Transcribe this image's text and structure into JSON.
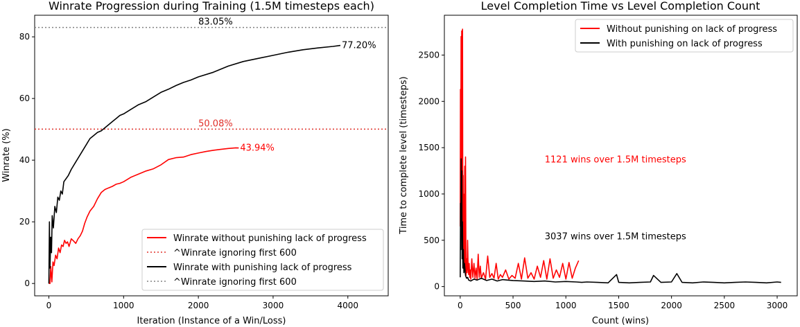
{
  "chart_data": [
    {
      "type": "line",
      "title": "Winrate Progression during Training (1.5M timesteps each)",
      "xlabel": "Iteration (Instance of a Win/Loss)",
      "ylabel": "Winrate (%)",
      "xlim": [
        -190,
        4540
      ],
      "ylim": [
        -4,
        87
      ],
      "xticks": [
        0,
        1000,
        2000,
        3000,
        4000
      ],
      "yticks": [
        0,
        20,
        40,
        60,
        80
      ],
      "grid": false,
      "legend_position": "lower-right",
      "series": [
        {
          "name": "Winrate without punishing lack of progress",
          "color": "#ff0000",
          "style": "solid",
          "x": [
            0,
            15,
            25,
            40,
            55,
            70,
            90,
            110,
            130,
            150,
            170,
            190,
            210,
            230,
            250,
            270,
            300,
            330,
            360,
            390,
            420,
            450,
            480,
            510,
            550,
            600,
            650,
            700,
            750,
            800,
            850,
            900,
            950,
            1000,
            1100,
            1200,
            1300,
            1400,
            1500,
            1600,
            1700,
            1800,
            1900,
            2000,
            2100,
            2200,
            2300,
            2400,
            2500,
            2540
          ],
          "y": [
            0,
            0,
            5.5,
            0.5,
            7,
            5.8,
            9.2,
            8.0,
            11.5,
            10.0,
            12.5,
            12.0,
            14.0,
            13.0,
            13.5,
            12.0,
            14.5,
            13.8,
            13.0,
            14.5,
            15.5,
            17.0,
            19.5,
            21.5,
            23.5,
            25.0,
            27.5,
            29.5,
            30.5,
            31.0,
            31.5,
            32.2,
            32.5,
            33.0,
            34.5,
            35.5,
            36.5,
            37.2,
            38.5,
            40.2,
            40.8,
            41.0,
            41.8,
            42.3,
            42.8,
            43.2,
            43.5,
            43.8,
            44.0,
            43.94
          ]
        },
        {
          "name": "^Winrate ignoring first 600",
          "color": "#e0302a",
          "style": "dotted",
          "hline": 50.08,
          "label": "50.08%"
        },
        {
          "name": "Winrate with punishing lack of progress",
          "color": "#000000",
          "style": "solid",
          "x": [
            0,
            8,
            15,
            25,
            35,
            45,
            60,
            80,
            100,
            120,
            140,
            160,
            180,
            200,
            230,
            260,
            300,
            350,
            400,
            450,
            500,
            550,
            600,
            650,
            700,
            750,
            800,
            850,
            900,
            950,
            1000,
            1100,
            1200,
            1300,
            1400,
            1500,
            1600,
            1700,
            1800,
            1900,
            2000,
            2200,
            2400,
            2600,
            2800,
            3000,
            3200,
            3400,
            3600,
            3800,
            3900
          ],
          "y": [
            0,
            20,
            5,
            15,
            10,
            22,
            18,
            25,
            23,
            28,
            27,
            30,
            29,
            33,
            34,
            35,
            37,
            39,
            41,
            43,
            45,
            47,
            48,
            49,
            49.5,
            50.5,
            51.5,
            52.5,
            53.5,
            54.5,
            55.0,
            56.5,
            58.0,
            59.0,
            60.5,
            62.0,
            63.0,
            64.2,
            65.2,
            66.0,
            67.0,
            68.5,
            70.5,
            72.0,
            73.0,
            74.0,
            75.0,
            75.8,
            76.4,
            76.9,
            77.2
          ]
        },
        {
          "name": "^Winrate ignoring first 600",
          "color": "#808080",
          "style": "dotted",
          "hline": 83.05,
          "label": "83.05%"
        }
      ],
      "annotations": [
        {
          "text": "77.20%",
          "x": 3900,
          "y": 77.2,
          "color": "#000000"
        },
        {
          "text": "43.94%",
          "x": 2540,
          "y": 43.94,
          "color": "#ff0000"
        }
      ]
    },
    {
      "type": "line",
      "title": "Level Completion Time vs Level Completion Count",
      "xlabel": "Count (wins)",
      "ylabel": "Time to complete level (timesteps)",
      "xlim": [
        -150,
        3190
      ],
      "ylim": [
        -100,
        2930
      ],
      "xticks": [
        0,
        500,
        1000,
        1500,
        2000,
        2500,
        3000
      ],
      "yticks": [
        0,
        500,
        1000,
        1500,
        2000,
        2500
      ],
      "grid": false,
      "legend_position": "top-right",
      "series": [
        {
          "name": "Without punishing on lack of progress",
          "color": "#ff0000",
          "style": "solid",
          "x": [
            0,
            2,
            4,
            6,
            8,
            10,
            12,
            14,
            16,
            18,
            20,
            22,
            24,
            26,
            28,
            30,
            32,
            35,
            38,
            40,
            43,
            46,
            50,
            55,
            60,
            65,
            70,
            75,
            80,
            85,
            90,
            95,
            100,
            110,
            120,
            130,
            140,
            150,
            160,
            170,
            180,
            190,
            200,
            220,
            240,
            260,
            280,
            300,
            320,
            340,
            360,
            380,
            400,
            430,
            460,
            490,
            520,
            550,
            580,
            610,
            640,
            670,
            700,
            730,
            760,
            790,
            820,
            850,
            880,
            910,
            940,
            970,
            1000,
            1030,
            1060,
            1090,
            1121
          ],
          "y": [
            650,
            2130,
            1500,
            1800,
            2700,
            1100,
            2300,
            2760,
            900,
            2500,
            1700,
            2780,
            1300,
            700,
            1200,
            400,
            1000,
            600,
            300,
            250,
            1300,
            200,
            1400,
            120,
            300,
            150,
            500,
            200,
            130,
            250,
            100,
            180,
            80,
            300,
            100,
            250,
            90,
            200,
            80,
            350,
            100,
            220,
            90,
            150,
            80,
            330,
            100,
            140,
            90,
            250,
            80,
            130,
            100,
            180,
            80,
            120,
            90,
            250,
            80,
            310,
            90,
            150,
            80,
            220,
            100,
            280,
            80,
            300,
            90,
            180,
            100,
            250,
            80,
            260,
            90,
            200,
            280
          ]
        },
        {
          "name": "With punishing on lack of progress",
          "color": "#000000",
          "style": "solid",
          "x": [
            0,
            3,
            6,
            9,
            12,
            15,
            18,
            21,
            25,
            30,
            35,
            40,
            50,
            60,
            70,
            80,
            100,
            130,
            160,
            200,
            250,
            300,
            350,
            400,
            450,
            500,
            600,
            700,
            800,
            900,
            1000,
            1100,
            1150,
            1200,
            1300,
            1400,
            1480,
            1500,
            1600,
            1700,
            1800,
            1830,
            1900,
            2000,
            2050,
            2100,
            2200,
            2300,
            2400,
            2500,
            2600,
            2700,
            2800,
            2900,
            3000,
            3037
          ],
          "y": [
            100,
            900,
            400,
            1380,
            600,
            1250,
            300,
            700,
            200,
            400,
            150,
            250,
            120,
            90,
            100,
            70,
            60,
            80,
            70,
            90,
            65,
            80,
            60,
            75,
            70,
            65,
            60,
            55,
            60,
            50,
            55,
            50,
            45,
            50,
            45,
            40,
            130,
            45,
            40,
            45,
            50,
            120,
            45,
            50,
            140,
            45,
            40,
            50,
            45,
            40,
            45,
            50,
            45,
            40,
            50,
            45
          ]
        }
      ],
      "annotations": [
        {
          "text": "1121 wins over 1.5M timesteps",
          "x": 800,
          "y": 1370,
          "color": "#ff0000"
        },
        {
          "text": "3037 wins over 1.5M timesteps",
          "x": 800,
          "y": 540,
          "color": "#000000"
        }
      ]
    }
  ]
}
